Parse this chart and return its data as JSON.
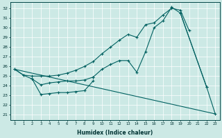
{
  "xlabel": "Humidex (Indice chaleur)",
  "bg_color": "#cce9e5",
  "line_color": "#006060",
  "grid_color": "#b8d8d4",
  "xlim": [
    -0.5,
    23.5
  ],
  "ylim": [
    20.5,
    32.6
  ],
  "yticks": [
    21,
    22,
    23,
    24,
    25,
    26,
    27,
    28,
    29,
    30,
    31,
    32
  ],
  "xticks": [
    0,
    1,
    2,
    3,
    4,
    5,
    6,
    7,
    8,
    9,
    10,
    11,
    12,
    13,
    14,
    15,
    16,
    17,
    18,
    19,
    20,
    21,
    22,
    23
  ],
  "line_upper": {
    "x": [
      0,
      1,
      2,
      3,
      4,
      5,
      6,
      7,
      8,
      9,
      10,
      11,
      12,
      13,
      14,
      15,
      16,
      17,
      18,
      19,
      20
    ],
    "y": [
      25.7,
      25.1,
      25.0,
      25.0,
      25.0,
      25.1,
      25.3,
      25.6,
      26.0,
      26.5,
      27.3,
      28.0,
      28.7,
      29.3,
      29.0,
      30.3,
      30.5,
      31.3,
      32.0,
      31.8,
      29.7
    ]
  },
  "line_mid": {
    "x": [
      0,
      1,
      2,
      3,
      4,
      5,
      6,
      7,
      8,
      9,
      10,
      11,
      12,
      13,
      14,
      15,
      16,
      17,
      18,
      19,
      22
    ],
    "y": [
      25.7,
      25.1,
      24.7,
      24.1,
      24.3,
      24.4,
      24.5,
      24.5,
      24.6,
      24.9,
      25.7,
      26.2,
      26.6,
      26.6,
      25.4,
      27.5,
      30.0,
      30.7,
      32.1,
      31.5,
      23.9
    ]
  },
  "line_bottom_short": {
    "x": [
      2,
      3,
      4,
      5,
      6,
      7,
      8,
      9
    ],
    "y": [
      24.7,
      23.1,
      23.2,
      23.3,
      23.3,
      23.4,
      23.5,
      24.5
    ]
  },
  "line_diagonal": {
    "x": [
      0,
      23
    ],
    "y": [
      25.7,
      21.1
    ]
  },
  "line_end": {
    "x": [
      19,
      22,
      23
    ],
    "y": [
      31.5,
      23.9,
      21.1
    ]
  }
}
